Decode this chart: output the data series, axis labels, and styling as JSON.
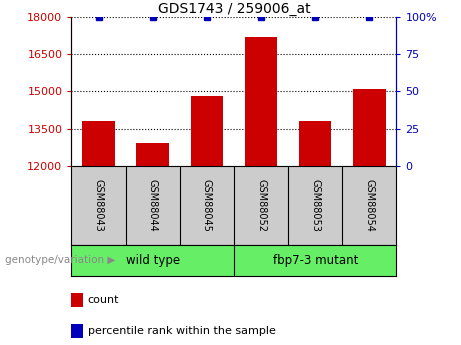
{
  "title": "GDS1743 / 259006_at",
  "samples": [
    "GSM88043",
    "GSM88044",
    "GSM88045",
    "GSM88052",
    "GSM88053",
    "GSM88054"
  ],
  "counts": [
    13800,
    12900,
    14800,
    17200,
    13800,
    15100
  ],
  "percentile_ranks": [
    100,
    100,
    100,
    100,
    100,
    100
  ],
  "ylim_left": [
    12000,
    18000
  ],
  "ylim_right": [
    0,
    100
  ],
  "yticks_left": [
    12000,
    13500,
    15000,
    16500,
    18000
  ],
  "yticks_right": [
    0,
    25,
    50,
    75,
    100
  ],
  "ytick_labels_left": [
    "12000",
    "13500",
    "15000",
    "16500",
    "18000"
  ],
  "ytick_labels_right": [
    "0",
    "25",
    "50",
    "75",
    "100%"
  ],
  "bar_color": "#cc0000",
  "dot_color": "#0000bb",
  "groups": [
    {
      "label": "wild type",
      "start": 0,
      "end": 2
    },
    {
      "label": "fbp7-3 mutant",
      "start": 3,
      "end": 5
    }
  ],
  "group_box_color": "#66ee66",
  "sample_box_color": "#cccccc",
  "legend_items": [
    {
      "color": "#cc0000",
      "label": "count"
    },
    {
      "color": "#0000bb",
      "label": "percentile rank within the sample"
    }
  ],
  "genotype_label": "genotype/variation",
  "background_color": "#ffffff",
  "left_label_color": "#cc0000",
  "right_label_color": "#0000bb"
}
